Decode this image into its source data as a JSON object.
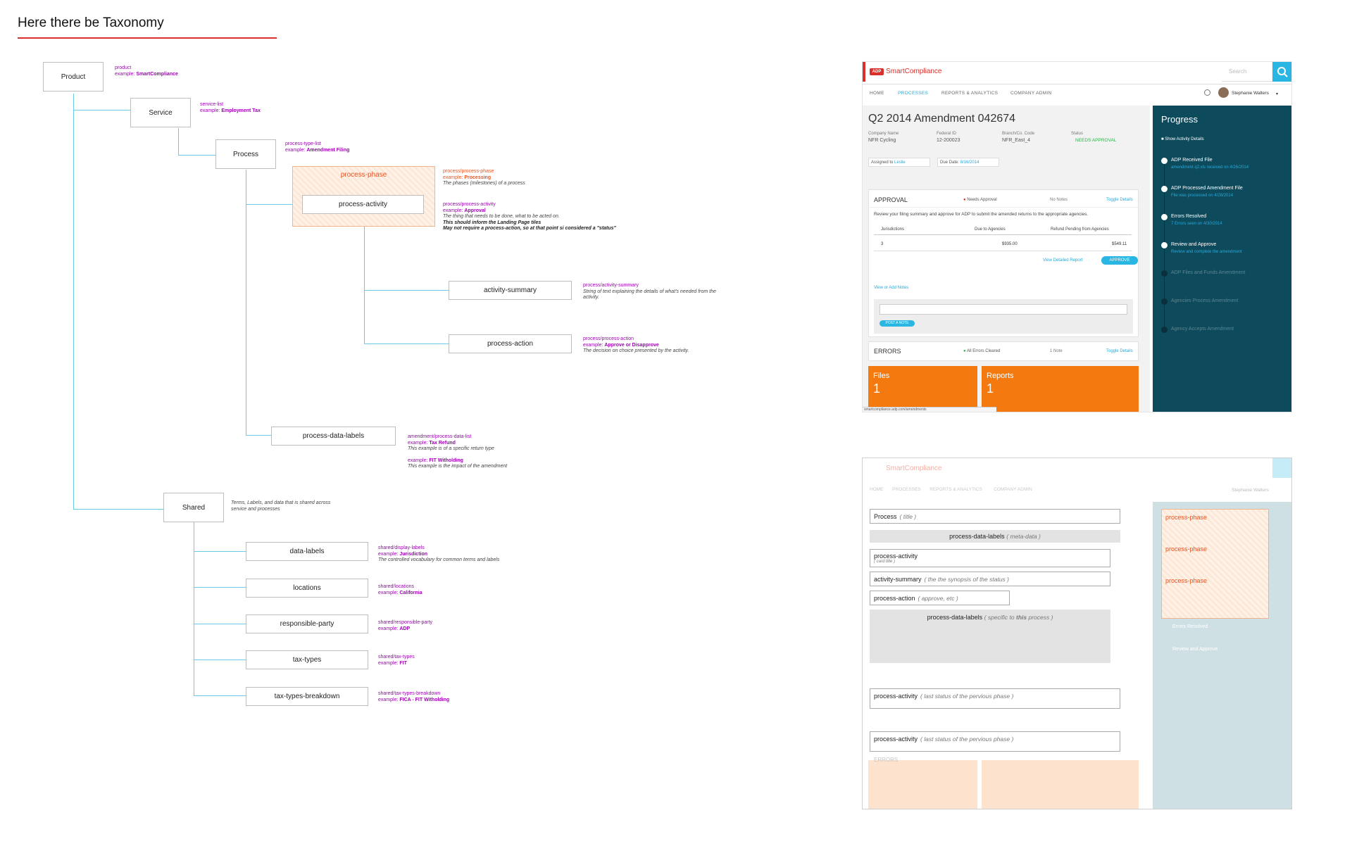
{
  "page_title": "Here there be Taxonomy",
  "nodes": {
    "product": "Product",
    "service": "Service",
    "process": "Process",
    "process_phase": "process-phase",
    "process_activity": "process-activity",
    "activity_summary": "activity-summary",
    "process_action": "process-action",
    "process_data_labels": "process-data-labels",
    "shared": "Shared",
    "data_labels": "data-labels",
    "locations": "locations",
    "responsible_party": "responsible-party",
    "tax_types": "tax-types",
    "tax_types_breakdown": "tax-types-breakdown"
  },
  "annotations": {
    "product": {
      "key": "product",
      "label": "example:",
      "example": "SmartCompliance"
    },
    "service": {
      "key": "service-list",
      "label": "example:",
      "example": "Employment Tax"
    },
    "process": {
      "key": "process-type-list",
      "label": "example:",
      "example": "Amendment Filing"
    },
    "process_phase": {
      "key": "process/process-phase",
      "label": "example:",
      "example": "Processing",
      "desc": "The phases (milestones) of a process"
    },
    "process_activity": {
      "key": "process/process-activity",
      "label": "example:",
      "example": "Approval",
      "desc": "The thing that needs to be done, what to be acted on.",
      "desc2": "This should inform the Landing Page tiles",
      "desc3": "May not require a process-action, so at that point si considered a \"status\""
    },
    "activity_summary": {
      "key": "process/activity-summary",
      "desc": "String of text explaining the details of what's needed from the",
      "desc2": "activity."
    },
    "process_action": {
      "key": "process/process-action",
      "label": "example:",
      "example": "Approve or Disapprove",
      "desc": "The decision on choice presented by the activity."
    },
    "process_data_labels": {
      "key": "amendment/process-data-list",
      "label": "example:",
      "example": "Tax Refund",
      "desc": "This example is of a specific return type",
      "label2": "example:",
      "example2": "FIT Witholding",
      "desc2": "This example is the impact of the amendment"
    },
    "shared": {
      "desc": "Terms, Labels, and data that is shared across",
      "desc2": "service and processes"
    },
    "data_labels": {
      "key": "shared/display-labels",
      "label": "example:",
      "example": "Jurisdiction",
      "desc": "The controlled vocabulary for common terms and labels"
    },
    "locations": {
      "key": "shared/locations",
      "label": "example:",
      "example": "California"
    },
    "responsible_party": {
      "key": "shared/responsible-party",
      "label": "example:",
      "example": "ADP"
    },
    "tax_types": {
      "key": "shared/tax-types",
      "label": "example:",
      "example": "FIT"
    },
    "tax_types_breakdown": {
      "key": "shared/tax-types-breakdown",
      "label": "example:",
      "example": "FICA - FIT Witholding"
    }
  },
  "mockup": {
    "brand": "SmartCompliance",
    "search_placeholder": "Search",
    "nav": [
      "HOME",
      "PROCESSES",
      "REPORTS & ANALYTICS",
      "COMPANY ADMIN"
    ],
    "user": "Stephanie Walters",
    "title": "Q2 2014 Amendment 042674",
    "meta": [
      {
        "label": "Company Name",
        "value": "NFR Cycling"
      },
      {
        "label": "Federal ID",
        "value": "12-200023"
      },
      {
        "label": "Branch/Co. Code",
        "value": "NFR_East_4"
      },
      {
        "label": "Status",
        "value": "NEEDS APPROVAL"
      }
    ],
    "assigned_label": "Assigned to",
    "assigned_value": "Leslie",
    "due_label": "Due Date:",
    "due_value": "8/16/2014",
    "approval": {
      "heading": "APPROVAL",
      "status": "Needs Approval",
      "notes": "No Notes",
      "toggle": "Toggle Details",
      "desc": "Review your filing summary and approve for ADP to submit the amended returns to the appropriate agencies.",
      "columns": [
        "Jurisdictions",
        "Due to Agencies",
        "Refund Pending from Agencies"
      ],
      "row": [
        "3",
        "$935.00",
        "$549.11"
      ],
      "view_link": "View Detailed Report",
      "approve": "APPROVE",
      "add_notes": "View or Add Notes",
      "post_note": "POST A NOTE"
    },
    "errors": {
      "heading": "ERRORS",
      "status": "All Errors Cleared",
      "notes": "1 Note",
      "toggle": "Toggle Details"
    },
    "tiles": [
      {
        "label": "Files",
        "count": "1"
      },
      {
        "label": "Reports",
        "count": "1"
      }
    ],
    "status_url": "smartcompliance.adp.com/amendments",
    "progress": {
      "heading": "Progress",
      "show_details": "Show Activity Details",
      "steps": [
        {
          "label": "ADP Received File",
          "sub": "amendment q2.xls received on 4/26/2014"
        },
        {
          "label": "ADP Processed Amendment File",
          "sub": "File was processed on 4/28/2014"
        },
        {
          "label": "Errors Resolved",
          "sub": "7 Errors seen on 4/30/2014"
        },
        {
          "label": "Review and Approve",
          "sub": "Review and complete the amendment"
        },
        {
          "label": "ADP Files and Funds Amendment",
          "sub": ""
        },
        {
          "label": "Agencies Process Amendment",
          "sub": ""
        },
        {
          "label": "Agency Accepts Amendment",
          "sub": ""
        }
      ]
    }
  },
  "overlay": {
    "process": {
      "name": "Process",
      "note": "( title )"
    },
    "process_data_labels": {
      "name": "process-data-labels",
      "note": "( meta-data )"
    },
    "process_activity": {
      "name": "process-activity",
      "note": "( card title )"
    },
    "activity_summary": {
      "name": "activity-summary",
      "note": "( the the synopsis of the status )"
    },
    "process_action": {
      "name": "process-action",
      "note": "( approve, etc )"
    },
    "process_data_labels2": {
      "name": "process-data-labels",
      "note_pre": "( specific to ",
      "note_bold": "this",
      "note_post": " process )"
    },
    "process_activity2": {
      "name": "process-activity",
      "note": "( last status of the pervious phase )"
    },
    "process_activity3": {
      "name": "process-activity",
      "note": "( last status of the pervious phase )"
    },
    "phases": [
      "process-phase",
      "process-phase",
      "process-phase"
    ]
  }
}
